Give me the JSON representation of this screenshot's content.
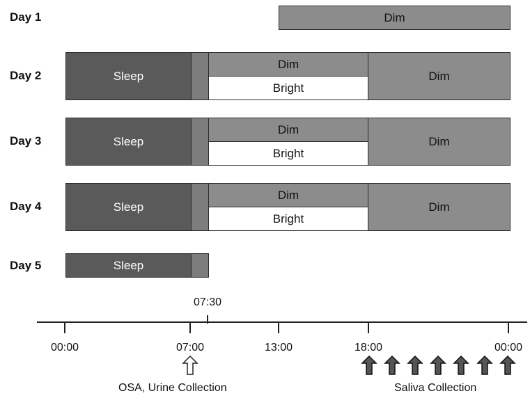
{
  "days": [
    {
      "label": "Day 1"
    },
    {
      "label": "Day 2"
    },
    {
      "label": "Day 3"
    },
    {
      "label": "Day 4"
    },
    {
      "label": "Day 5"
    }
  ],
  "block_labels": {
    "sleep": "Sleep",
    "dim": "Dim",
    "bright": "Bright"
  },
  "axis": {
    "ticks": [
      "00:00",
      "07:00",
      "13:00",
      "18:00",
      "00:00"
    ],
    "marker_label": "07:30"
  },
  "annotations": {
    "osa_urine": "OSA, Urine Collection",
    "saliva": "Saliva Collection",
    "saliva_arrow_count": 7
  },
  "colors": {
    "sleep": "#5a5a5a",
    "transition": "#7d7d7d",
    "dim": "#8c8c8c",
    "bright": "#ffffff",
    "open_arrow": "#ffffff",
    "saliva_arrow": "#555555"
  }
}
